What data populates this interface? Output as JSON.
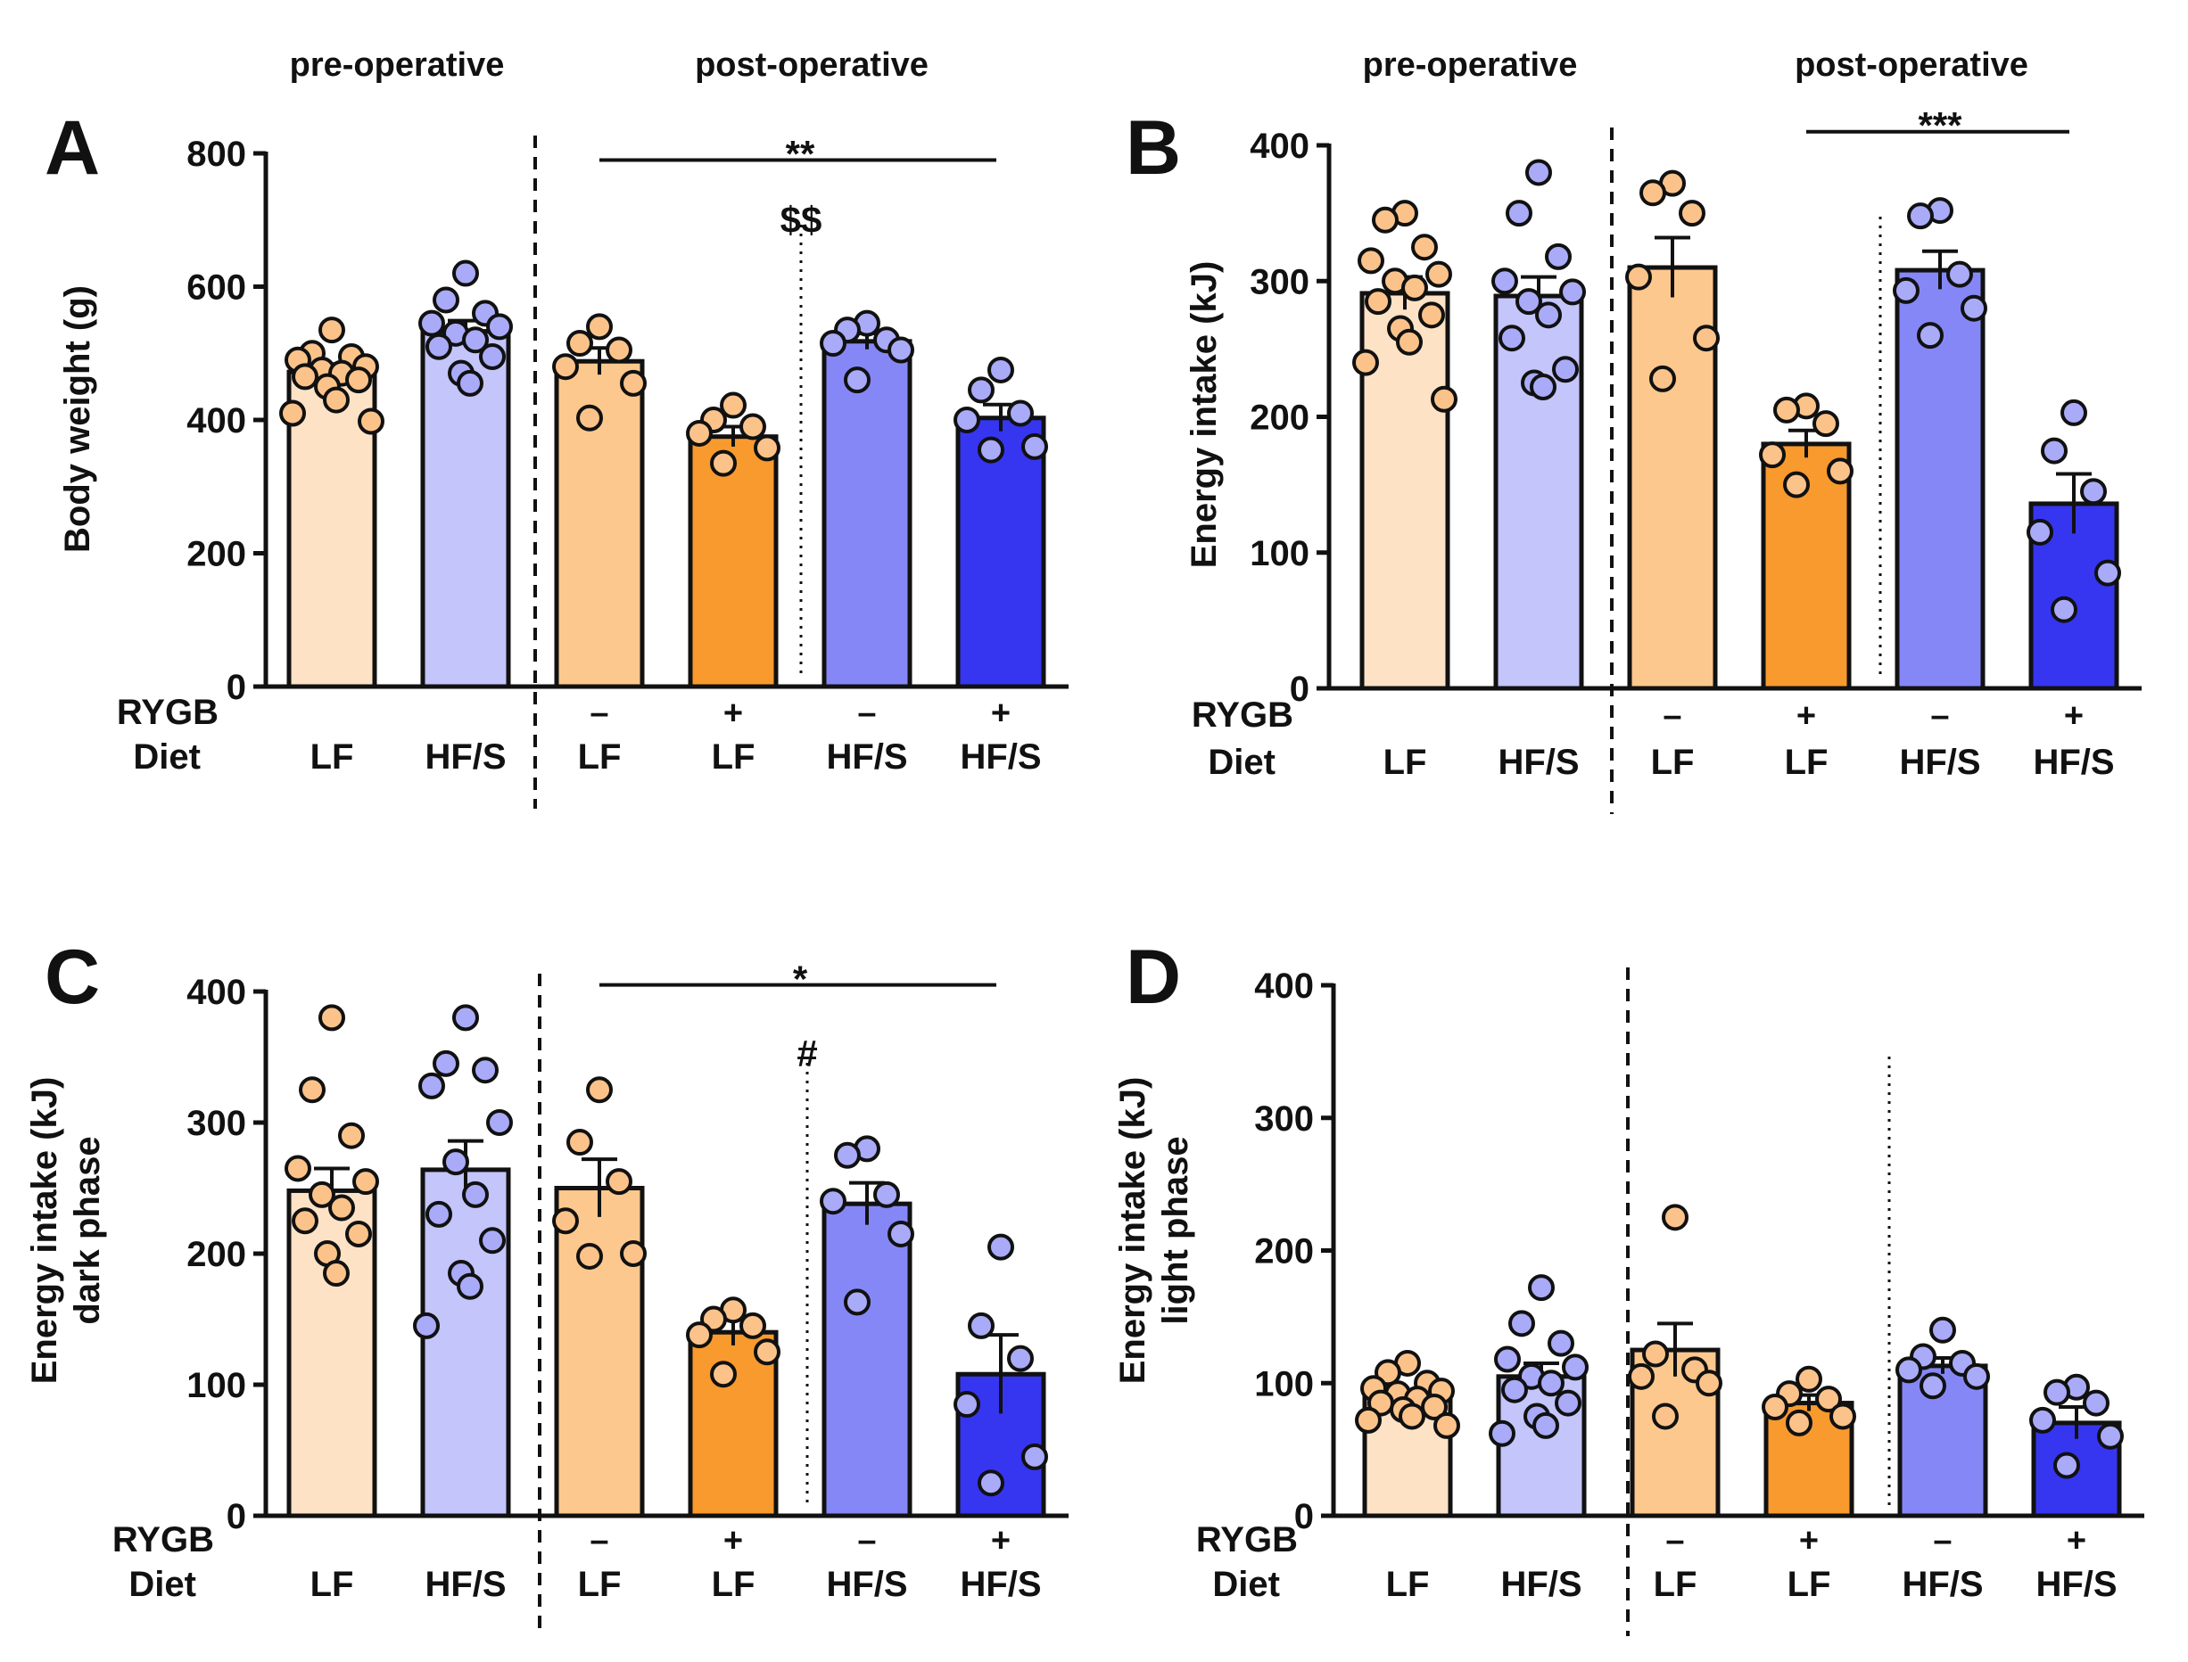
{
  "figure": {
    "row_labels": {
      "rygb": "RYGB",
      "diet": "Diet"
    },
    "phase_labels": {
      "pre": "pre-operative",
      "post": "post-operative"
    },
    "colors": {
      "LF_pre": "#fde2c6",
      "HF_pre": "#c3c5fb",
      "LF_sham": "#fcc88d",
      "LF_rygb": "#f99a2e",
      "HF_sham": "#8687f6",
      "HF_rygb": "#3636f0",
      "LF_dot": "#fbc38a",
      "HF_dot": "#a9abf8"
    }
  },
  "chart_data": [
    {
      "panel": "A",
      "type": "bar",
      "ylabel": [
        "Body weight (g)"
      ],
      "ylim": [
        0,
        800
      ],
      "yticks": [
        0,
        200,
        400,
        600,
        800
      ],
      "show_pre_post_labels": true,
      "groups": [
        {
          "rygb": "",
          "diet": "LF",
          "color": "LF_pre",
          "dot": "LF_dot",
          "mean": 472,
          "sem": 12,
          "points": [
            535,
            500,
            495,
            490,
            480,
            475,
            470,
            465,
            460,
            450,
            430,
            410,
            398
          ]
        },
        {
          "rygb": "",
          "diet": "HF/S",
          "color": "HF_pre",
          "dot": "HF_dot",
          "mean": 533,
          "sem": 16,
          "points": [
            620,
            580,
            560,
            545,
            540,
            530,
            520,
            510,
            495,
            470,
            455
          ]
        },
        {
          "rygb": "–",
          "diet": "LF",
          "color": "LF_sham",
          "dot": "LF_dot",
          "mean": 488,
          "sem": 20,
          "points": [
            540,
            515,
            505,
            480,
            455,
            403
          ]
        },
        {
          "rygb": "+",
          "diet": "LF",
          "color": "LF_rygb",
          "dot": "LF_dot",
          "mean": 375,
          "sem": 15,
          "points": [
            422,
            400,
            390,
            380,
            358,
            335
          ]
        },
        {
          "rygb": "–",
          "diet": "HF/S",
          "color": "HF_sham",
          "dot": "HF_dot",
          "mean": 518,
          "sem": 12,
          "points": [
            545,
            535,
            520,
            515,
            505,
            460
          ]
        },
        {
          "rygb": "+",
          "diet": "HF/S",
          "color": "HF_rygb",
          "dot": "HF_dot",
          "mean": 403,
          "sem": 20,
          "points": [
            475,
            445,
            410,
            400,
            360,
            355
          ]
        }
      ],
      "annotations": [
        {
          "text": "**",
          "from_group": 2,
          "to_group": 5,
          "line_value": 790,
          "text_value": 820
        },
        {
          "text": "$$",
          "from_group": 4,
          "to_group": 4,
          "line_value": null,
          "text_value": 705
        }
      ]
    },
    {
      "panel": "B",
      "type": "bar",
      "ylabel": [
        "Energy intake (kJ)"
      ],
      "ylim": [
        0,
        400
      ],
      "yticks": [
        0,
        100,
        200,
        300,
        400
      ],
      "show_pre_post_labels": true,
      "groups": [
        {
          "rygb": "",
          "diet": "LF",
          "color": "LF_pre",
          "dot": "LF_dot",
          "mean": 291,
          "sem": 12,
          "points": [
            350,
            345,
            325,
            315,
            305,
            300,
            295,
            285,
            275,
            265,
            255,
            240,
            213
          ]
        },
        {
          "rygb": "",
          "diet": "HF/S",
          "color": "HF_pre",
          "dot": "HF_dot",
          "mean": 289,
          "sem": 14,
          "points": [
            380,
            350,
            318,
            300,
            292,
            285,
            275,
            258,
            235,
            225,
            222
          ]
        },
        {
          "rygb": "–",
          "diet": "LF",
          "color": "LF_sham",
          "dot": "LF_dot",
          "mean": 310,
          "sem": 22,
          "points": [
            372,
            365,
            350,
            303,
            258,
            228
          ]
        },
        {
          "rygb": "+",
          "diet": "LF",
          "color": "LF_rygb",
          "dot": "LF_dot",
          "mean": 180,
          "sem": 10,
          "points": [
            208,
            205,
            195,
            172,
            160,
            150
          ]
        },
        {
          "rygb": "–",
          "diet": "HF/S",
          "color": "HF_sham",
          "dot": "HF_dot",
          "mean": 308,
          "sem": 14,
          "points": [
            352,
            348,
            305,
            293,
            280,
            260
          ]
        },
        {
          "rygb": "+",
          "diet": "HF/S",
          "color": "HF_rygb",
          "dot": "HF_dot",
          "mean": 136,
          "sem": 22,
          "points": [
            203,
            175,
            145,
            115,
            85,
            58
          ]
        }
      ],
      "annotations": [
        {
          "text": "***",
          "from_group": 3,
          "to_group": 5,
          "line_value": 410,
          "text_value": 425
        }
      ]
    },
    {
      "panel": "C",
      "type": "bar",
      "ylabel": [
        "Energy intake (kJ)",
        "dark phase"
      ],
      "ylim": [
        0,
        400
      ],
      "yticks": [
        0,
        100,
        200,
        300,
        400
      ],
      "show_pre_post_labels": false,
      "groups": [
        {
          "rygb": "",
          "diet": "LF",
          "color": "LF_pre",
          "dot": "LF_dot",
          "mean": 248,
          "sem": 17,
          "points": [
            380,
            325,
            290,
            265,
            255,
            245,
            235,
            225,
            215,
            200,
            185
          ]
        },
        {
          "rygb": "",
          "diet": "HF/S",
          "color": "HF_pre",
          "dot": "HF_dot",
          "mean": 264,
          "sem": 22,
          "points": [
            380,
            345,
            340,
            328,
            300,
            270,
            245,
            230,
            210,
            185,
            175,
            145
          ]
        },
        {
          "rygb": "–",
          "diet": "LF",
          "color": "LF_sham",
          "dot": "LF_dot",
          "mean": 250,
          "sem": 22,
          "points": [
            325,
            285,
            255,
            225,
            200,
            198
          ]
        },
        {
          "rygb": "+",
          "diet": "LF",
          "color": "LF_rygb",
          "dot": "LF_dot",
          "mean": 140,
          "sem": 10,
          "points": [
            157,
            150,
            145,
            138,
            125,
            108
          ]
        },
        {
          "rygb": "–",
          "diet": "HF/S",
          "color": "HF_sham",
          "dot": "HF_dot",
          "mean": 238,
          "sem": 16,
          "points": [
            280,
            275,
            245,
            240,
            215,
            163
          ]
        },
        {
          "rygb": "+",
          "diet": "HF/S",
          "color": "HF_rygb",
          "dot": "HF_dot",
          "mean": 108,
          "sem": 30,
          "points": [
            205,
            145,
            120,
            85,
            45,
            25
          ]
        }
      ],
      "annotations": [
        {
          "text": "*",
          "from_group": 2,
          "to_group": 5,
          "line_value": 405,
          "text_value": 420
        },
        {
          "text": "#",
          "from_group": 4,
          "to_group": 4,
          "line_value": null,
          "text_value": 355
        }
      ]
    },
    {
      "panel": "D",
      "type": "bar",
      "ylabel": [
        "Energy intake (kJ)",
        "light phase"
      ],
      "ylim": [
        0,
        400
      ],
      "yticks": [
        0,
        100,
        200,
        300,
        400
      ],
      "show_pre_post_labels": false,
      "groups": [
        {
          "rygb": "",
          "diet": "LF",
          "color": "LF_pre",
          "dot": "LF_dot",
          "mean": 90,
          "sem": 5,
          "points": [
            115,
            108,
            100,
            96,
            94,
            92,
            88,
            85,
            82,
            80,
            75,
            72,
            68
          ]
        },
        {
          "rygb": "",
          "diet": "HF/S",
          "color": "HF_pre",
          "dot": "HF_dot",
          "mean": 105,
          "sem": 10,
          "points": [
            172,
            145,
            130,
            118,
            112,
            105,
            100,
            95,
            85,
            75,
            68,
            62
          ]
        },
        {
          "rygb": "–",
          "diet": "LF",
          "color": "LF_sham",
          "dot": "LF_dot",
          "mean": 125,
          "sem": 20,
          "points": [
            225,
            122,
            110,
            105,
            100,
            75
          ]
        },
        {
          "rygb": "+",
          "diet": "LF",
          "color": "LF_rygb",
          "dot": "LF_dot",
          "mean": 85,
          "sem": 6,
          "points": [
            103,
            92,
            88,
            82,
            75,
            70
          ]
        },
        {
          "rygb": "–",
          "diet": "HF/S",
          "color": "HF_sham",
          "dot": "HF_dot",
          "mean": 113,
          "sem": 6,
          "points": [
            140,
            120,
            115,
            110,
            105,
            98
          ]
        },
        {
          "rygb": "+",
          "diet": "HF/S",
          "color": "HF_rygb",
          "dot": "HF_dot",
          "mean": 70,
          "sem": 12,
          "points": [
            97,
            93,
            85,
            72,
            60,
            38
          ]
        }
      ],
      "annotations": []
    }
  ]
}
